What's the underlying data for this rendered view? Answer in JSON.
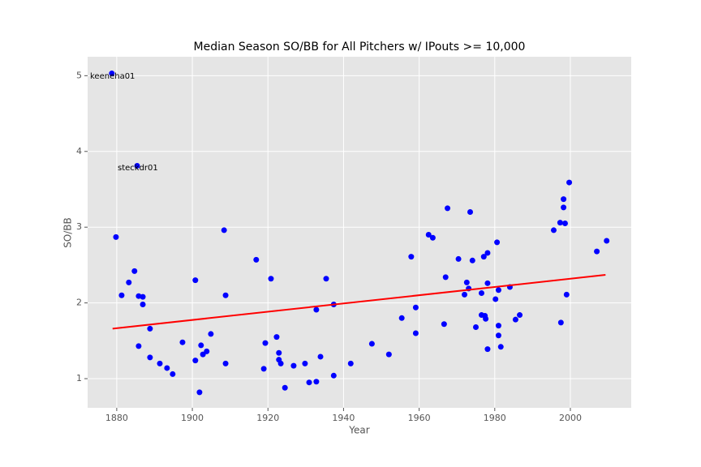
{
  "chart_data": {
    "type": "scatter",
    "title": "Median Season SO/BB for All Pitchers w/ IPouts >= 10,000",
    "x_label": "Year",
    "y_label": "SO/BB",
    "xlim": [
      1872.3,
      2016.1
    ],
    "ylim": [
      0.615,
      5.25
    ],
    "xticks": [
      1880,
      1900,
      1920,
      1940,
      1960,
      1980,
      2000
    ],
    "yticks": [
      1,
      2,
      3,
      4,
      5
    ],
    "grid": true,
    "series": [
      {
        "color": "#0000ff",
        "x": [
          1878.7,
          1885.4,
          1879.8,
          1881.3,
          1883.2,
          1884.7,
          1885.8,
          1886.9,
          1886.9,
          1885.8,
          1888.8,
          1888.8,
          1891.4,
          1893.3,
          1894.8,
          1897.4,
          1900.8,
          1900.8,
          1902.3,
          1901.9,
          1902.8,
          1903.8,
          1904.9,
          1908.4,
          1908.8,
          1908.8,
          1916.9,
          1918.9,
          1919.3,
          1920.8,
          1922.3,
          1922.9,
          1922.9,
          1923.4,
          1924.5,
          1926.8,
          1929.8,
          1930.9,
          1932.8,
          1932.8,
          1933.9,
          1935.4,
          1937.4,
          1937.4,
          1941.9,
          1947.5,
          1952.0,
          1955.4,
          1957.9,
          1959.1,
          1959.1,
          1962.5,
          1963.6,
          1966.6,
          1967.0,
          1967.5,
          1970.4,
          1972.0,
          1972.6,
          1973.1,
          1973.5,
          1974.1,
          1975.0,
          1976.5,
          1976.5,
          1977.1,
          1977.4,
          1977.6,
          1978.1,
          1978.1,
          1978.1,
          1980.2,
          1980.6,
          1981.0,
          1981.0,
          1981.0,
          1981.6,
          1984.0,
          1985.5,
          1986.6,
          1995.6,
          1997.3,
          1997.5,
          1998.2,
          1998.2,
          1998.6,
          1999.0,
          1999.7,
          2007.0,
          2009.6
        ],
        "values": [
          5.03,
          3.81,
          2.87,
          2.1,
          2.27,
          2.42,
          2.09,
          2.08,
          1.98,
          1.43,
          1.66,
          1.28,
          1.2,
          1.14,
          1.06,
          1.48,
          2.3,
          1.24,
          1.44,
          0.82,
          1.32,
          1.36,
          1.59,
          2.96,
          2.1,
          1.2,
          2.57,
          1.13,
          1.47,
          2.32,
          1.55,
          1.34,
          1.25,
          1.2,
          0.88,
          1.17,
          1.2,
          0.95,
          0.96,
          1.91,
          1.29,
          2.32,
          1.98,
          1.04,
          1.2,
          1.46,
          1.32,
          1.8,
          2.61,
          1.94,
          1.6,
          2.9,
          2.86,
          1.72,
          2.34,
          3.25,
          2.58,
          2.11,
          2.27,
          2.19,
          3.2,
          2.56,
          1.68,
          1.84,
          2.13,
          2.61,
          1.83,
          1.79,
          2.66,
          2.26,
          1.39,
          2.05,
          2.8,
          2.17,
          1.7,
          1.57,
          1.42,
          2.21,
          1.78,
          1.84,
          2.96,
          3.06,
          1.74,
          3.26,
          3.37,
          3.05,
          2.11,
          3.59,
          2.68,
          2.82
        ]
      }
    ],
    "trendline": {
      "color": "#ff0000",
      "x": [
        1878.9,
        2009.3
      ],
      "values": [
        1.66,
        2.37
      ]
    },
    "annotations": [
      "keeneha01",
      "steckdr01"
    ]
  }
}
